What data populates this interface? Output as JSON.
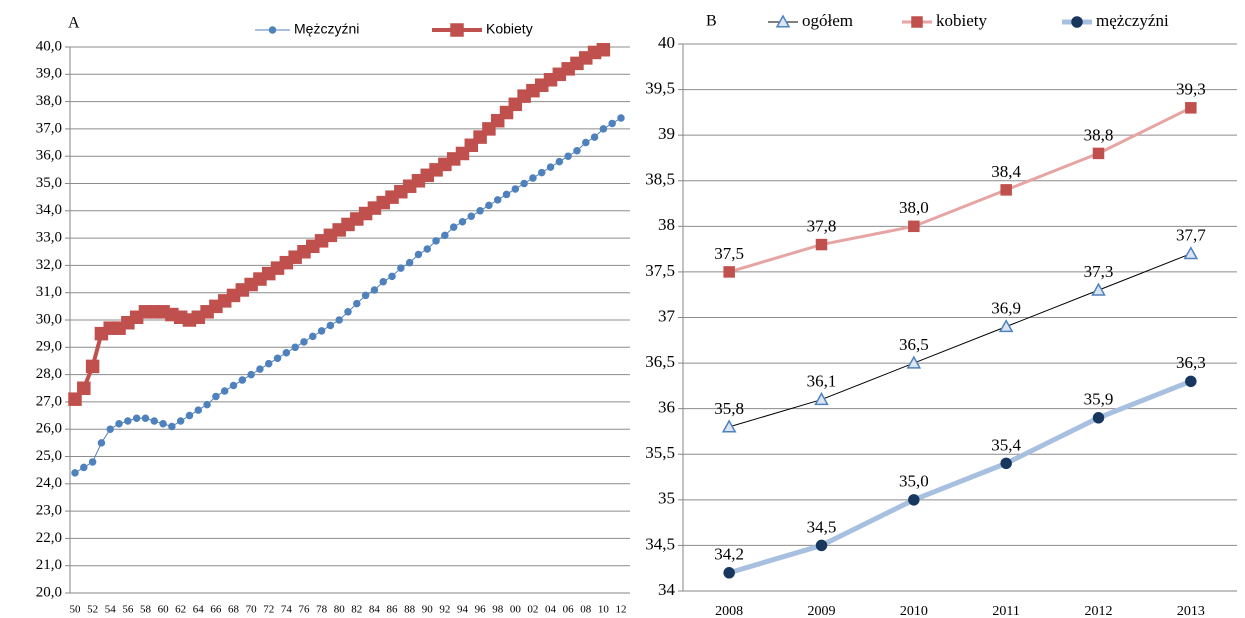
{
  "chart_data": [
    {
      "type": "line",
      "title": "A",
      "categories": [
        "50",
        null,
        "52",
        null,
        "54",
        null,
        "56",
        null,
        "58",
        null,
        "60",
        null,
        "62",
        null,
        "64",
        null,
        "66",
        null,
        "68",
        null,
        "70",
        null,
        "72",
        null,
        "74",
        null,
        "76",
        null,
        "78",
        null,
        "80",
        null,
        "82",
        null,
        "84",
        null,
        "86",
        null,
        "88",
        null,
        "90",
        null,
        "92",
        null,
        "94",
        null,
        "96",
        null,
        "98",
        null,
        "00",
        null,
        "02",
        null,
        "04",
        null,
        "06",
        null,
        "08",
        null,
        "10",
        null,
        "12"
      ],
      "series": [
        {
          "name": "Mężczyźni",
          "color": "#4f81bd",
          "line_color": "#4f81bd",
          "line_width": 1,
          "marker": "circle",
          "marker_size": 3,
          "values": [
            24.4,
            24.6,
            24.8,
            25.5,
            26.0,
            26.2,
            26.3,
            26.4,
            26.4,
            26.3,
            26.2,
            26.1,
            26.3,
            26.5,
            26.7,
            26.9,
            27.2,
            27.4,
            27.6,
            27.8,
            28.0,
            28.2,
            28.4,
            28.6,
            28.8,
            29.0,
            29.2,
            29.4,
            29.6,
            29.8,
            30.0,
            30.3,
            30.6,
            30.9,
            31.1,
            31.4,
            31.6,
            31.9,
            32.1,
            32.4,
            32.6,
            32.9,
            33.1,
            33.4,
            33.6,
            33.8,
            34.0,
            34.2,
            34.4,
            34.6,
            34.8,
            35.0,
            35.2,
            35.4,
            35.6,
            35.8,
            36.0,
            36.2,
            36.5,
            36.7,
            37.0,
            37.2,
            37.4
          ]
        },
        {
          "name": "Kobiety",
          "color": "#c0504d",
          "line_color": "#c0504d",
          "line_width": 4,
          "marker": "square",
          "marker_size": 6,
          "values": [
            27.1,
            27.5,
            28.3,
            29.5,
            29.7,
            29.7,
            29.9,
            30.1,
            30.3,
            30.3,
            30.3,
            30.2,
            30.1,
            30.0,
            30.1,
            30.3,
            30.5,
            30.7,
            30.9,
            31.1,
            31.3,
            31.5,
            31.7,
            31.9,
            32.1,
            32.3,
            32.5,
            32.7,
            32.9,
            33.1,
            33.3,
            33.5,
            33.7,
            33.9,
            34.1,
            34.3,
            34.5,
            34.7,
            34.9,
            35.1,
            35.3,
            35.5,
            35.7,
            35.9,
            36.1,
            36.4,
            36.7,
            37.0,
            37.3,
            37.6,
            37.9,
            38.2,
            38.4,
            38.6,
            38.8,
            39.0,
            39.2,
            39.4,
            39.6,
            39.8,
            39.9,
            null,
            null
          ]
        }
      ],
      "ylim": [
        20,
        40
      ],
      "yticks": [
        {
          "value": 20,
          "label": "20,0"
        },
        {
          "value": 21,
          "label": "21,0"
        },
        {
          "value": 22,
          "label": "22,0"
        },
        {
          "value": 23,
          "label": "23,0"
        },
        {
          "value": 24,
          "label": "24,0"
        },
        {
          "value": 25,
          "label": "25,0"
        },
        {
          "value": 26,
          "label": "26,0"
        },
        {
          "value": 27,
          "label": "27,0"
        },
        {
          "value": 28,
          "label": "28,0"
        },
        {
          "value": 29,
          "label": "29,0"
        },
        {
          "value": 30,
          "label": "30,0"
        },
        {
          "value": 31,
          "label": "31,0"
        },
        {
          "value": 32,
          "label": "32,0"
        },
        {
          "value": 33,
          "label": "33,0"
        },
        {
          "value": 34,
          "label": "34,0"
        },
        {
          "value": 35,
          "label": "35,0"
        },
        {
          "value": 36,
          "label": "36,0"
        },
        {
          "value": 37,
          "label": "37,0"
        },
        {
          "value": 38,
          "label": "38,0"
        },
        {
          "value": 39,
          "label": "39,0"
        },
        {
          "value": 40,
          "label": "40,0"
        }
      ],
      "grid": true
    },
    {
      "type": "line",
      "title": "B",
      "categories": [
        "2008",
        "2009",
        "2010",
        "2011",
        "2012",
        "2013"
      ],
      "series": [
        {
          "name": "ogółem",
          "color": "#4f81bd",
          "line_color": "#000000",
          "line_width": 1,
          "marker": "triangle",
          "marker_size": 6,
          "marker_fill": "#dbe5f1",
          "values": [
            35.8,
            36.1,
            36.5,
            36.9,
            37.3,
            37.7
          ],
          "value_labels": [
            "35,8",
            "36,1",
            "36,5",
            "36,9",
            "37,3",
            "37,7"
          ]
        },
        {
          "name": "kobiety",
          "color": "#c0504d",
          "line_color": "#e6a5a3",
          "line_width": 3,
          "marker": "square",
          "marker_size": 5,
          "values": [
            37.5,
            37.8,
            38.0,
            38.4,
            38.8,
            39.3
          ],
          "value_labels": [
            "37,5",
            "37,8",
            "38,0",
            "38,4",
            "38,8",
            "39,3"
          ]
        },
        {
          "name": "mężczyźni",
          "color": "#17375e",
          "line_color": "#a7c0e0",
          "line_width": 5,
          "marker": "circle",
          "marker_size": 5,
          "values": [
            34.2,
            34.5,
            35.0,
            35.4,
            35.9,
            36.3
          ],
          "value_labels": [
            "34,2",
            "34,5",
            "35,0",
            "35,4",
            "35,9",
            "36,3"
          ]
        }
      ],
      "ylim": [
        34,
        40
      ],
      "yticks": [
        34,
        {
          "value": 34.5,
          "label": "34,5"
        },
        35,
        {
          "value": 35.5,
          "label": "35,5"
        },
        36,
        {
          "value": 36.5,
          "label": "36,5"
        },
        37,
        {
          "value": 37.5,
          "label": "37,5"
        },
        38,
        {
          "value": 38.5,
          "label": "38,5"
        },
        39,
        {
          "value": 39.5,
          "label": "39,5"
        },
        40
      ],
      "grid": true
    }
  ]
}
